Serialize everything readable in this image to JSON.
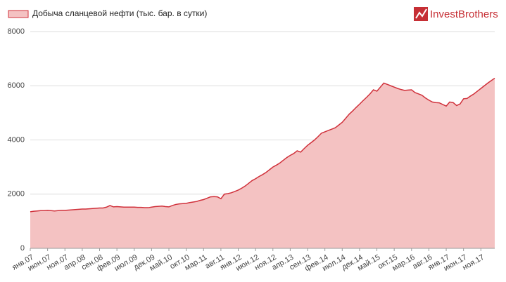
{
  "chart_data": {
    "type": "area",
    "logo": "InvestBrothers",
    "categories": [
      "янв.07",
      null,
      null,
      null,
      null,
      "июн.07",
      null,
      null,
      null,
      null,
      "ноя.07",
      null,
      null,
      null,
      null,
      "апр.08",
      null,
      null,
      null,
      null,
      "сен.08",
      null,
      null,
      null,
      null,
      "фев.09",
      null,
      null,
      null,
      null,
      "июл.09",
      null,
      null,
      null,
      null,
      "дек.09",
      null,
      null,
      null,
      null,
      "май.10",
      null,
      null,
      null,
      null,
      "окт.10",
      null,
      null,
      null,
      null,
      "мар.11",
      null,
      null,
      null,
      null,
      "авг.11",
      null,
      null,
      null,
      null,
      "янв.12",
      null,
      null,
      null,
      null,
      "июн.12",
      null,
      null,
      null,
      null,
      "ноя.12",
      null,
      null,
      null,
      null,
      "апр.13",
      null,
      null,
      null,
      null,
      "сен.13",
      null,
      null,
      null,
      null,
      "фев.14",
      null,
      null,
      null,
      null,
      "июл.14",
      null,
      null,
      null,
      null,
      "дек.14",
      null,
      null,
      null,
      null,
      "май.15",
      null,
      null,
      null,
      null,
      "окт.15",
      null,
      null,
      null,
      null,
      "мар.16",
      null,
      null,
      null,
      null,
      "авг.16",
      null,
      null,
      null,
      null,
      "янв.17",
      null,
      null,
      null,
      null,
      "июн.17",
      null,
      null,
      null,
      null,
      "ноя.17",
      null,
      null,
      null,
      null
    ],
    "series": [
      {
        "name": "Добыча сланцевой нефти (тыс. бар. в сутки)",
        "color": "#d0313b",
        "fill": "#f4c2c2",
        "values": [
          1350,
          1370,
          1380,
          1390,
          1390,
          1400,
          1390,
          1380,
          1390,
          1400,
          1400,
          1410,
          1420,
          1430,
          1440,
          1450,
          1450,
          1460,
          1470,
          1480,
          1490,
          1490,
          1520,
          1580,
          1530,
          1540,
          1530,
          1520,
          1520,
          1520,
          1520,
          1510,
          1510,
          1500,
          1500,
          1520,
          1540,
          1550,
          1560,
          1540,
          1530,
          1580,
          1620,
          1640,
          1650,
          1660,
          1690,
          1710,
          1730,
          1770,
          1800,
          1850,
          1900,
          1910,
          1900,
          1830,
          2000,
          2020,
          2050,
          2100,
          2150,
          2220,
          2300,
          2400,
          2500,
          2570,
          2650,
          2720,
          2800,
          2900,
          3000,
          3070,
          3150,
          3250,
          3350,
          3430,
          3500,
          3600,
          3550,
          3680,
          3800,
          3900,
          4000,
          4120,
          4250,
          4300,
          4350,
          4400,
          4450,
          4550,
          4650,
          4800,
          4950,
          5070,
          5200,
          5320,
          5450,
          5570,
          5700,
          5850,
          5800,
          5950,
          6100,
          6050,
          6000,
          5950,
          5900,
          5860,
          5830,
          5840,
          5850,
          5750,
          5700,
          5650,
          5550,
          5470,
          5400,
          5380,
          5370,
          5310,
          5250,
          5400,
          5380,
          5270,
          5330,
          5520,
          5530,
          5620,
          5700,
          5800,
          5900,
          6000,
          6100,
          6190,
          6280
        ]
      }
    ],
    "ylim": [
      0,
      8000
    ],
    "yticks": [
      0,
      2000,
      4000,
      6000,
      8000
    ],
    "grid": true
  }
}
